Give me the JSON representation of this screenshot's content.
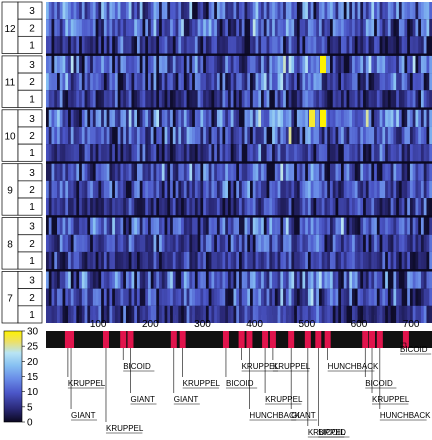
{
  "chart_data": {
    "type": "heatmap",
    "groups": [
      {
        "label": "12",
        "rows": [
          "3",
          "2",
          "1"
        ]
      },
      {
        "label": "11",
        "rows": [
          "3",
          "2",
          "1"
        ]
      },
      {
        "label": "10",
        "rows": [
          "3",
          "2",
          "1"
        ]
      },
      {
        "label": "9",
        "rows": [
          "3",
          "2",
          "1"
        ]
      },
      {
        "label": "8",
        "rows": [
          "3",
          "2",
          "1"
        ]
      },
      {
        "label": "7",
        "rows": [
          "3",
          "2",
          "1"
        ]
      }
    ],
    "x_ticks": [
      "100",
      "200",
      "300",
      "400",
      "500",
      "600",
      "700"
    ],
    "x_tick_values": [
      100,
      200,
      300,
      400,
      500,
      600,
      700
    ],
    "x_range": [
      0,
      740
    ],
    "colorbar": {
      "ticks": [
        "30",
        "25",
        "20",
        "15",
        "10",
        "5",
        "0"
      ],
      "tick_values": [
        30,
        25,
        20,
        15,
        10,
        5,
        0
      ],
      "range": [
        0,
        30
      ],
      "colors": [
        "#0b0820",
        "#2b2a7a",
        "#4b56c8",
        "#6a8ee8",
        "#86c0f2",
        "#b8e4f4",
        "#ece06a",
        "#fff200"
      ]
    },
    "sites": [
      {
        "position": 42,
        "name": "KRUPPEL"
      },
      {
        "position": 48,
        "name": "GIANT"
      },
      {
        "position": 115,
        "name": "KRUPPEL"
      },
      {
        "position": 148,
        "name": "BICOID"
      },
      {
        "position": 162,
        "name": "GIANT"
      },
      {
        "position": 245,
        "name": "GIANT"
      },
      {
        "position": 262,
        "name": "KRUPPEL"
      },
      {
        "position": 345,
        "name": "BICOID"
      },
      {
        "position": 375,
        "name": "KRUPPEL"
      },
      {
        "position": 390,
        "name": "HUNCHBACK"
      },
      {
        "position": 420,
        "name": "KRUPPEL"
      },
      {
        "position": 435,
        "name": "KRUPPEL"
      },
      {
        "position": 470,
        "name": "GIANT"
      },
      {
        "position": 502,
        "name": "KRUPPEL"
      },
      {
        "position": 522,
        "name": "BICOID"
      },
      {
        "position": 540,
        "name": "HUNCHBACK"
      },
      {
        "position": 612,
        "name": "BICOID"
      },
      {
        "position": 625,
        "name": "KRUPPEL"
      },
      {
        "position": 640,
        "name": "HUNCHBACK"
      },
      {
        "position": 690,
        "name": "BICOID"
      }
    ],
    "hotspots": [
      {
        "group": "11",
        "row": "3",
        "x": 531,
        "value": 30
      },
      {
        "group": "10",
        "row": "3",
        "x": 510,
        "value": 28
      },
      {
        "group": "10",
        "row": "3",
        "x": 531,
        "value": 30
      }
    ],
    "colors": {
      "site_bar": "#e0144c",
      "track": "#111111",
      "leader": "#000000"
    }
  }
}
